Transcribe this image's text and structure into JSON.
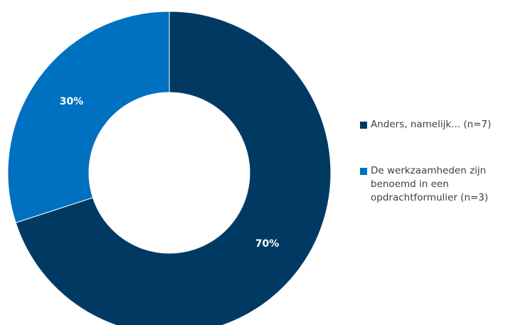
{
  "chart_data": {
    "type": "pie",
    "variant": "donut",
    "title": "",
    "categories": [
      "Anders, namelijk... (n=7)",
      "De werkzaamheden zijn benoemd in een opdrachtformulier (n=3)"
    ],
    "values": [
      70,
      30
    ],
    "data_labels": [
      "70%",
      "30%"
    ],
    "colors": [
      "#003A63",
      "#0070C0"
    ],
    "legend": {
      "position": "right",
      "entries": [
        "Anders, namelijk... (n=7)",
        "De werkzaamheden zijn benoemd in een opdrachtformulier (n=3)"
      ]
    }
  }
}
